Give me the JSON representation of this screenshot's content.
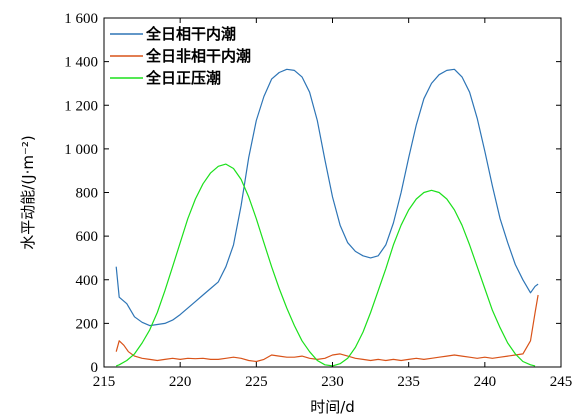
{
  "chart_data": {
    "type": "line",
    "title": "",
    "xlabel": "时间/d",
    "ylabel": "水平动能/(J·m⁻²)",
    "xlim": [
      215,
      245
    ],
    "ylim": [
      0,
      1600
    ],
    "xticks": [
      215,
      220,
      225,
      230,
      235,
      240,
      245
    ],
    "xtick_labels": [
      "215",
      "220",
      "225",
      "230",
      "235",
      "240",
      "245"
    ],
    "yticks": [
      0,
      200,
      400,
      600,
      800,
      1000,
      1200,
      1400,
      1600
    ],
    "ytick_labels": [
      "0",
      "200",
      "400",
      "600",
      "800",
      "1 000",
      "1 200",
      "1 400",
      "1 600"
    ],
    "grid": false,
    "legend_position": "top-left",
    "series": [
      {
        "name": "全日相干内潮",
        "color": "#2E75B6",
        "points": [
          [
            215.8,
            460
          ],
          [
            216.0,
            320
          ],
          [
            216.5,
            290
          ],
          [
            217.0,
            230
          ],
          [
            217.5,
            205
          ],
          [
            218.0,
            190
          ],
          [
            218.5,
            195
          ],
          [
            219.0,
            200
          ],
          [
            219.5,
            215
          ],
          [
            220.0,
            240
          ],
          [
            220.5,
            270
          ],
          [
            221.0,
            300
          ],
          [
            221.5,
            330
          ],
          [
            222.0,
            360
          ],
          [
            222.5,
            390
          ],
          [
            223.0,
            460
          ],
          [
            223.5,
            560
          ],
          [
            224.0,
            740
          ],
          [
            224.5,
            960
          ],
          [
            225.0,
            1130
          ],
          [
            225.5,
            1240
          ],
          [
            226.0,
            1320
          ],
          [
            226.5,
            1350
          ],
          [
            227.0,
            1365
          ],
          [
            227.5,
            1360
          ],
          [
            228.0,
            1330
          ],
          [
            228.5,
            1260
          ],
          [
            229.0,
            1130
          ],
          [
            229.5,
            950
          ],
          [
            230.0,
            780
          ],
          [
            230.5,
            650
          ],
          [
            231.0,
            570
          ],
          [
            231.5,
            530
          ],
          [
            232.0,
            510
          ],
          [
            232.5,
            500
          ],
          [
            233.0,
            510
          ],
          [
            233.5,
            560
          ],
          [
            234.0,
            660
          ],
          [
            234.5,
            800
          ],
          [
            235.0,
            960
          ],
          [
            235.5,
            1110
          ],
          [
            236.0,
            1230
          ],
          [
            236.5,
            1300
          ],
          [
            237.0,
            1340
          ],
          [
            237.5,
            1360
          ],
          [
            238.0,
            1365
          ],
          [
            238.5,
            1330
          ],
          [
            239.0,
            1260
          ],
          [
            239.5,
            1140
          ],
          [
            240.0,
            990
          ],
          [
            240.5,
            830
          ],
          [
            241.0,
            680
          ],
          [
            241.5,
            570
          ],
          [
            242.0,
            470
          ],
          [
            242.5,
            400
          ],
          [
            243.0,
            340
          ],
          [
            243.3,
            370
          ],
          [
            243.5,
            380
          ]
        ]
      },
      {
        "name": "全日非相干内潮",
        "color": "#D95319",
        "points": [
          [
            215.8,
            70
          ],
          [
            216.0,
            120
          ],
          [
            216.3,
            100
          ],
          [
            216.6,
            70
          ],
          [
            217.0,
            50
          ],
          [
            217.5,
            40
          ],
          [
            218.0,
            35
          ],
          [
            218.5,
            30
          ],
          [
            219.0,
            35
          ],
          [
            219.5,
            40
          ],
          [
            220.0,
            35
          ],
          [
            220.5,
            40
          ],
          [
            221.0,
            38
          ],
          [
            221.5,
            40
          ],
          [
            222.0,
            35
          ],
          [
            222.5,
            35
          ],
          [
            223.0,
            40
          ],
          [
            223.5,
            45
          ],
          [
            224.0,
            40
          ],
          [
            224.5,
            30
          ],
          [
            225.0,
            25
          ],
          [
            225.5,
            35
          ],
          [
            226.0,
            55
          ],
          [
            226.5,
            50
          ],
          [
            227.0,
            45
          ],
          [
            227.5,
            45
          ],
          [
            228.0,
            50
          ],
          [
            228.5,
            40
          ],
          [
            229.0,
            35
          ],
          [
            229.5,
            40
          ],
          [
            230.0,
            55
          ],
          [
            230.5,
            60
          ],
          [
            231.0,
            50
          ],
          [
            231.5,
            40
          ],
          [
            232.0,
            35
          ],
          [
            232.5,
            30
          ],
          [
            233.0,
            35
          ],
          [
            233.5,
            30
          ],
          [
            234.0,
            35
          ],
          [
            234.5,
            30
          ],
          [
            235.0,
            35
          ],
          [
            235.5,
            40
          ],
          [
            236.0,
            35
          ],
          [
            236.5,
            40
          ],
          [
            237.0,
            45
          ],
          [
            237.5,
            50
          ],
          [
            238.0,
            55
          ],
          [
            238.5,
            50
          ],
          [
            239.0,
            45
          ],
          [
            239.5,
            40
          ],
          [
            240.0,
            45
          ],
          [
            240.5,
            40
          ],
          [
            241.0,
            45
          ],
          [
            241.5,
            50
          ],
          [
            242.0,
            55
          ],
          [
            242.5,
            60
          ],
          [
            243.0,
            120
          ],
          [
            243.3,
            250
          ],
          [
            243.5,
            330
          ]
        ]
      },
      {
        "name": "全日正压潮",
        "color": "#1CE01C",
        "points": [
          [
            215.8,
            5
          ],
          [
            216.0,
            10
          ],
          [
            216.5,
            30
          ],
          [
            217.0,
            60
          ],
          [
            217.5,
            110
          ],
          [
            218.0,
            170
          ],
          [
            218.5,
            250
          ],
          [
            219.0,
            350
          ],
          [
            219.5,
            460
          ],
          [
            220.0,
            570
          ],
          [
            220.5,
            680
          ],
          [
            221.0,
            770
          ],
          [
            221.5,
            840
          ],
          [
            222.0,
            890
          ],
          [
            222.5,
            920
          ],
          [
            223.0,
            930
          ],
          [
            223.5,
            910
          ],
          [
            224.0,
            860
          ],
          [
            224.5,
            780
          ],
          [
            225.0,
            680
          ],
          [
            225.5,
            570
          ],
          [
            226.0,
            460
          ],
          [
            226.5,
            360
          ],
          [
            227.0,
            270
          ],
          [
            227.5,
            190
          ],
          [
            228.0,
            120
          ],
          [
            228.5,
            70
          ],
          [
            229.0,
            30
          ],
          [
            229.5,
            10
          ],
          [
            230.0,
            5
          ],
          [
            230.5,
            15
          ],
          [
            231.0,
            40
          ],
          [
            231.5,
            90
          ],
          [
            232.0,
            160
          ],
          [
            232.5,
            250
          ],
          [
            233.0,
            350
          ],
          [
            233.5,
            450
          ],
          [
            234.0,
            560
          ],
          [
            234.5,
            650
          ],
          [
            235.0,
            720
          ],
          [
            235.5,
            770
          ],
          [
            236.0,
            800
          ],
          [
            236.5,
            810
          ],
          [
            237.0,
            800
          ],
          [
            237.5,
            770
          ],
          [
            238.0,
            720
          ],
          [
            238.5,
            650
          ],
          [
            239.0,
            560
          ],
          [
            239.5,
            460
          ],
          [
            240.0,
            360
          ],
          [
            240.5,
            260
          ],
          [
            241.0,
            180
          ],
          [
            241.5,
            110
          ],
          [
            242.0,
            60
          ],
          [
            242.5,
            25
          ],
          [
            243.0,
            10
          ],
          [
            243.3,
            5
          ]
        ]
      }
    ]
  }
}
